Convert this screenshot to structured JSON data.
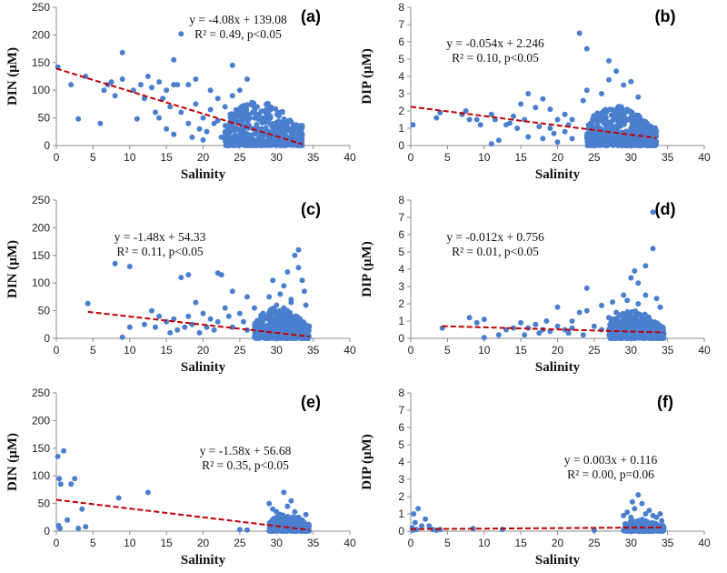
{
  "chart_data": [
    {
      "panel": "(a)",
      "type": "scatter",
      "xlabel": "Salinity",
      "ylabel": "DIN (μM)",
      "xlim": [
        0,
        40
      ],
      "ylim": [
        0,
        250
      ],
      "xticks": [
        0,
        5,
        10,
        15,
        20,
        25,
        30,
        35,
        40
      ],
      "yticks": [
        0,
        50,
        100,
        150,
        200,
        250
      ],
      "equation": "y = -4.08x + 139.08",
      "stats": "R² = 0.49, p<0.05",
      "trend": {
        "slope": -4.08,
        "intercept": 139.08,
        "x": [
          0,
          33.5
        ]
      },
      "cluster": {
        "x": [
          23,
          33.5
        ],
        "y_max": 80,
        "n": 520
      },
      "points": [
        [
          0.2,
          142
        ],
        [
          2,
          110
        ],
        [
          3,
          48
        ],
        [
          4,
          125
        ],
        [
          6,
          40
        ],
        [
          6.5,
          100
        ],
        [
          7,
          110
        ],
        [
          7.5,
          115
        ],
        [
          8,
          90
        ],
        [
          9,
          168
        ],
        [
          9,
          120
        ],
        [
          10.5,
          100
        ],
        [
          11,
          48
        ],
        [
          11.5,
          110
        ],
        [
          12,
          85
        ],
        [
          12.5,
          125
        ],
        [
          13,
          105
        ],
        [
          13.5,
          60
        ],
        [
          14,
          50
        ],
        [
          14,
          115
        ],
        [
          14.5,
          85
        ],
        [
          15,
          30
        ],
        [
          15,
          100
        ],
        [
          15.5,
          70
        ],
        [
          16,
          155
        ],
        [
          16,
          110
        ],
        [
          16.5,
          110
        ],
        [
          16,
          20
        ],
        [
          17,
          202
        ],
        [
          17,
          60
        ],
        [
          18,
          110
        ],
        [
          18,
          40
        ],
        [
          19,
          75
        ],
        [
          19,
          120
        ],
        [
          20,
          50
        ],
        [
          20,
          10
        ],
        [
          21,
          100
        ],
        [
          21,
          65
        ],
        [
          22,
          85
        ],
        [
          22,
          45
        ],
        [
          23,
          70
        ],
        [
          23,
          25
        ],
        [
          24,
          145
        ],
        [
          24,
          90
        ],
        [
          25,
          100
        ],
        [
          25,
          60
        ],
        [
          26,
          120
        ],
        [
          27,
          70
        ],
        [
          28,
          30
        ],
        [
          20.5,
          25
        ],
        [
          21.5,
          40
        ],
        [
          18.5,
          15
        ],
        [
          22.5,
          15
        ],
        [
          19.5,
          30
        ],
        [
          24,
          40
        ]
      ]
    },
    {
      "panel": "(b)",
      "type": "scatter",
      "xlabel": "Salinity",
      "ylabel": "DIP (μM)",
      "xlim": [
        0,
        40
      ],
      "ylim": [
        0,
        8
      ],
      "xticks": [
        0,
        5,
        10,
        15,
        20,
        25,
        30,
        35,
        40
      ],
      "yticks": [
        0,
        1,
        2,
        3,
        4,
        5,
        6,
        7,
        8
      ],
      "equation": "y = -0.054x + 2.246",
      "stats": "R² = 0.10, p<0.05",
      "trend": {
        "slope": -0.054,
        "intercept": 2.246,
        "x": [
          0,
          33.5
        ]
      },
      "cluster": {
        "x": [
          24,
          33.5
        ],
        "y_max": 2.3,
        "n": 520
      },
      "points": [
        [
          0.3,
          1.2
        ],
        [
          3.5,
          1.6
        ],
        [
          4,
          1.9
        ],
        [
          7,
          1.8
        ],
        [
          7.5,
          2.0
        ],
        [
          8,
          1.5
        ],
        [
          9,
          1.5
        ],
        [
          9.5,
          1.2
        ],
        [
          11,
          0.1
        ],
        [
          11,
          1.8
        ],
        [
          11.5,
          1.5
        ],
        [
          12,
          0.3
        ],
        [
          13,
          1.2
        ],
        [
          13.5,
          1.3
        ],
        [
          14,
          1.7
        ],
        [
          14.5,
          1.0
        ],
        [
          15,
          2.4
        ],
        [
          15.5,
          1.5
        ],
        [
          16,
          3.0
        ],
        [
          16,
          0.5
        ],
        [
          17,
          2.2
        ],
        [
          17.5,
          1.1
        ],
        [
          18,
          2.7
        ],
        [
          18,
          0.4
        ],
        [
          19,
          1.0
        ],
        [
          19,
          2.1
        ],
        [
          20,
          1.5
        ],
        [
          20,
          0.2
        ],
        [
          21,
          1.8
        ],
        [
          21,
          0.8
        ],
        [
          22,
          1.5
        ],
        [
          22,
          0.4
        ],
        [
          23,
          6.5
        ],
        [
          23.5,
          2.6
        ],
        [
          24,
          5.6
        ],
        [
          24,
          3.2
        ],
        [
          26,
          3.0
        ],
        [
          27,
          4.9
        ],
        [
          27,
          3.8
        ],
        [
          28,
          4.3
        ],
        [
          29,
          3.5
        ],
        [
          30,
          3.7
        ],
        [
          31,
          2.8
        ],
        [
          21.5,
          1.2
        ],
        [
          19.5,
          0.7
        ]
      ]
    },
    {
      "panel": "(c)",
      "type": "scatter",
      "xlabel": "Salinity",
      "ylabel": "DIN (μM)",
      "xlim": [
        0,
        40
      ],
      "ylim": [
        0,
        250
      ],
      "xticks": [
        0,
        5,
        10,
        15,
        20,
        25,
        30,
        35,
        40
      ],
      "yticks": [
        0,
        50,
        100,
        150,
        200,
        250
      ],
      "equation": "y = -1.48x + 54.33",
      "stats": "R² = 0.11, p<0.05",
      "trend": {
        "slope": -1.48,
        "intercept": 54.33,
        "x": [
          4.3,
          34.5
        ]
      },
      "cluster": {
        "x": [
          27,
          34.5
        ],
        "y_max": 55,
        "n": 480
      },
      "points": [
        [
          4.3,
          63
        ],
        [
          8,
          135
        ],
        [
          9,
          2
        ],
        [
          10,
          130
        ],
        [
          10,
          20
        ],
        [
          12,
          25
        ],
        [
          13,
          50
        ],
        [
          13.5,
          20
        ],
        [
          14,
          40
        ],
        [
          15,
          30
        ],
        [
          15.5,
          10
        ],
        [
          16,
          35
        ],
        [
          16.5,
          15
        ],
        [
          17,
          110
        ],
        [
          17.5,
          20
        ],
        [
          18,
          115
        ],
        [
          18,
          40
        ],
        [
          18.5,
          25
        ],
        [
          19,
          65
        ],
        [
          19.5,
          10
        ],
        [
          20,
          45
        ],
        [
          20.5,
          20
        ],
        [
          21,
          35
        ],
        [
          21.5,
          15
        ],
        [
          22,
          118
        ],
        [
          22.5,
          115
        ],
        [
          22,
          30
        ],
        [
          23,
          55
        ],
        [
          23.5,
          40
        ],
        [
          24,
          85
        ],
        [
          24,
          20
        ],
        [
          25,
          45
        ],
        [
          25.5,
          30
        ],
        [
          26,
          75
        ],
        [
          26,
          15
        ],
        [
          27,
          55
        ],
        [
          28,
          40
        ],
        [
          29,
          75
        ],
        [
          29.5,
          105
        ],
        [
          30,
          60
        ],
        [
          30.5,
          80
        ],
        [
          31,
          95
        ],
        [
          31.5,
          120
        ],
        [
          32,
          65
        ],
        [
          32.5,
          150
        ],
        [
          33,
          160
        ],
        [
          33.5,
          105
        ],
        [
          33,
          128
        ],
        [
          32,
          70
        ],
        [
          31,
          55
        ],
        [
          34,
          60
        ],
        [
          33.8,
          85
        ]
      ]
    },
    {
      "panel": "(d)",
      "type": "scatter",
      "xlabel": "Salinity",
      "ylabel": "DIP (μM)",
      "xlim": [
        0,
        40
      ],
      "ylim": [
        0,
        8
      ],
      "xticks": [
        0,
        5,
        10,
        15,
        20,
        25,
        30,
        35,
        40
      ],
      "yticks": [
        0,
        1,
        2,
        3,
        4,
        5,
        6,
        7,
        8
      ],
      "equation": "y = -0.012x + 0.756",
      "stats": "R² = 0.01, p<0.05",
      "trend": {
        "slope": -0.012,
        "intercept": 0.756,
        "x": [
          4.3,
          34.5
        ]
      },
      "cluster": {
        "x": [
          27,
          34.5
        ],
        "y_max": 1.6,
        "n": 480
      },
      "points": [
        [
          4.3,
          0.6
        ],
        [
          8,
          1.2
        ],
        [
          9,
          0.9
        ],
        [
          10,
          1.1
        ],
        [
          10,
          0.05
        ],
        [
          12,
          0.2
        ],
        [
          13,
          0.5
        ],
        [
          14,
          0.6
        ],
        [
          15,
          0.9
        ],
        [
          15.5,
          0.2
        ],
        [
          16,
          0.6
        ],
        [
          17,
          0.8
        ],
        [
          17.5,
          0.3
        ],
        [
          18,
          0.5
        ],
        [
          18.5,
          1.0
        ],
        [
          19,
          0.4
        ],
        [
          20,
          0.7
        ],
        [
          20,
          1.8
        ],
        [
          21,
          0.5
        ],
        [
          21.5,
          0.3
        ],
        [
          22,
          1.0
        ],
        [
          22,
          0.6
        ],
        [
          23,
          1.5
        ],
        [
          23.5,
          0.2
        ],
        [
          24,
          2.9
        ],
        [
          24,
          1.6
        ],
        [
          25,
          0.7
        ],
        [
          26,
          1.9
        ],
        [
          26,
          0.5
        ],
        [
          27,
          1.2
        ],
        [
          27.5,
          2.1
        ],
        [
          28,
          1.5
        ],
        [
          29,
          2.5
        ],
        [
          29.5,
          2.2
        ],
        [
          30,
          3.5
        ],
        [
          30.5,
          3.9
        ],
        [
          31,
          3.2
        ],
        [
          32,
          4.2
        ],
        [
          33,
          5.2
        ],
        [
          33,
          7.3
        ],
        [
          32,
          2.5
        ],
        [
          31,
          2.0
        ],
        [
          33.5,
          2.3
        ],
        [
          34,
          1.8
        ]
      ]
    },
    {
      "panel": "(e)",
      "type": "scatter",
      "xlabel": "Salinity",
      "ylabel": "DIN (μM)",
      "xlim": [
        0,
        40
      ],
      "ylim": [
        0,
        250
      ],
      "xticks": [
        0,
        5,
        10,
        15,
        20,
        25,
        30,
        35,
        40
      ],
      "yticks": [
        0,
        50,
        100,
        150,
        200,
        250
      ],
      "equation": "y = -1.58x + 56.68",
      "stats": "R² = 0.35, p<0.05",
      "trend": {
        "slope": -1.58,
        "intercept": 56.68,
        "x": [
          0,
          34.5
        ]
      },
      "cluster": {
        "x": [
          29,
          34.5
        ],
        "y_max": 30,
        "n": 220
      },
      "points": [
        [
          0.2,
          135
        ],
        [
          0.4,
          95
        ],
        [
          0.6,
          85
        ],
        [
          0.3,
          10
        ],
        [
          0.5,
          5
        ],
        [
          1,
          145
        ],
        [
          1.5,
          20
        ],
        [
          2,
          85
        ],
        [
          2.5,
          95
        ],
        [
          3,
          5
        ],
        [
          3.5,
          40
        ],
        [
          4,
          8
        ],
        [
          8.5,
          60
        ],
        [
          12.5,
          70
        ],
        [
          25,
          3
        ],
        [
          26,
          2
        ],
        [
          29,
          50
        ],
        [
          29.5,
          40
        ],
        [
          30,
          35
        ],
        [
          30.5,
          30
        ],
        [
          31,
          70
        ],
        [
          31.5,
          45
        ],
        [
          32,
          55
        ],
        [
          32.5,
          35
        ],
        [
          33,
          25
        ],
        [
          33.5,
          20
        ],
        [
          34,
          30
        ],
        [
          30,
          20
        ],
        [
          31,
          25
        ],
        [
          32,
          20
        ]
      ]
    },
    {
      "panel": "(f)",
      "type": "scatter",
      "xlabel": "Salinity",
      "ylabel": "DIP (μM)",
      "xlim": [
        0,
        40
      ],
      "ylim": [
        0,
        8
      ],
      "xticks": [
        0,
        5,
        10,
        15,
        20,
        25,
        30,
        35,
        40
      ],
      "yticks": [
        0,
        1,
        2,
        3,
        4,
        5,
        6,
        7,
        8
      ],
      "equation": "y = 0.003x + 0.116",
      "stats": "R² = 0.00, p=0.06",
      "trend": {
        "slope": 0.003,
        "intercept": 0.116,
        "x": [
          0,
          34.5
        ]
      },
      "cluster": {
        "x": [
          29,
          34.5
        ],
        "y_max": 0.7,
        "n": 220
      },
      "points": [
        [
          0.2,
          0.2
        ],
        [
          0.4,
          1.0
        ],
        [
          0.6,
          0.5
        ],
        [
          0.3,
          0.05
        ],
        [
          0.8,
          0.1
        ],
        [
          1,
          1.3
        ],
        [
          1.5,
          0.3
        ],
        [
          2,
          0.7
        ],
        [
          2.5,
          0.3
        ],
        [
          3,
          0.1
        ],
        [
          3.5,
          0.05
        ],
        [
          4,
          0.1
        ],
        [
          8.5,
          0.15
        ],
        [
          12.5,
          0.1
        ],
        [
          25,
          0.05
        ],
        [
          29,
          0.9
        ],
        [
          29.5,
          1.1
        ],
        [
          30,
          0.8
        ],
        [
          30.5,
          1.3
        ],
        [
          31,
          2.1
        ],
        [
          31.5,
          1.6
        ],
        [
          32,
          1.0
        ],
        [
          32.5,
          1.2
        ],
        [
          33,
          0.9
        ],
        [
          33.5,
          0.8
        ],
        [
          34,
          1.0
        ],
        [
          34.2,
          0.6
        ],
        [
          30.2,
          1.7
        ]
      ]
    }
  ]
}
